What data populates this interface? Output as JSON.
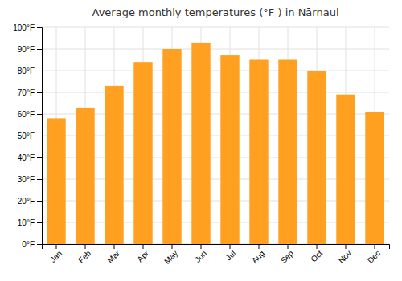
{
  "chart_data": {
    "type": "bar",
    "title": "Average monthly temperatures (°F ) in Nārnaul",
    "categories": [
      "Jan",
      "Feb",
      "Mar",
      "Apr",
      "May",
      "Jun",
      "Jul",
      "Aug",
      "Sep",
      "Oct",
      "Nov",
      "Dec"
    ],
    "values": [
      58,
      63,
      73,
      84,
      90,
      93,
      87,
      85,
      85,
      80,
      69,
      61
    ],
    "color": "#FFA020",
    "ylim": [
      0,
      100
    ],
    "yticks": [
      {
        "value": 0,
        "label": "0°F"
      },
      {
        "value": 10,
        "label": "10°F"
      },
      {
        "value": 20,
        "label": "20°F"
      },
      {
        "value": 30,
        "label": "30°F"
      },
      {
        "value": 40,
        "label": "40°F"
      },
      {
        "value": 50,
        "label": "50°F"
      },
      {
        "value": 60,
        "label": "60°F"
      },
      {
        "value": 70,
        "label": "70°F"
      },
      {
        "value": 80,
        "label": "80°F"
      },
      {
        "value": 90,
        "label": "90°F"
      },
      {
        "value": 100,
        "label": "100°F"
      }
    ],
    "grid": true
  }
}
